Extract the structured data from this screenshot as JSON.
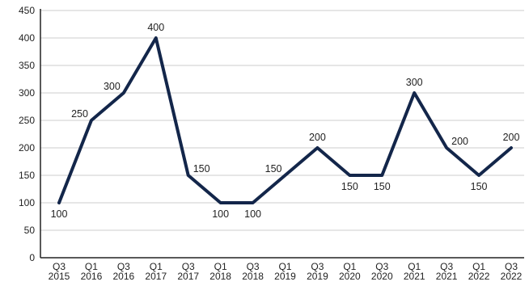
{
  "chart_data": {
    "type": "line",
    "title": "",
    "xlabel": "",
    "ylabel": "",
    "ylim": [
      0,
      450
    ],
    "yticks": [
      0,
      50,
      100,
      150,
      200,
      250,
      300,
      350,
      400,
      450
    ],
    "grid": true,
    "legend": "none",
    "line_color": "#13264a",
    "categories": [
      [
        "Q3",
        "2015"
      ],
      [
        "Q1",
        "2016"
      ],
      [
        "Q3",
        "2016"
      ],
      [
        "Q1",
        "2017"
      ],
      [
        "Q3",
        "2017"
      ],
      [
        "Q1",
        "2018"
      ],
      [
        "Q3",
        "2018"
      ],
      [
        "Q1",
        "2019"
      ],
      [
        "Q3",
        "2019"
      ],
      [
        "Q1",
        "2020"
      ],
      [
        "Q3",
        "2020"
      ],
      [
        "Q1",
        "2021"
      ],
      [
        "Q3",
        "2021"
      ],
      [
        "Q1",
        "2022"
      ],
      [
        "Q3",
        "2022"
      ]
    ],
    "series": [
      {
        "values": [
          100,
          250,
          300,
          400,
          150,
          100,
          100,
          150,
          200,
          150,
          150,
          300,
          200,
          150,
          200
        ],
        "data_labels": [
          "100",
          "250",
          "300",
          "400",
          "150",
          "100",
          "100",
          "150",
          "200",
          "150",
          "150",
          "300",
          "200",
          "150",
          "200"
        ]
      }
    ]
  }
}
